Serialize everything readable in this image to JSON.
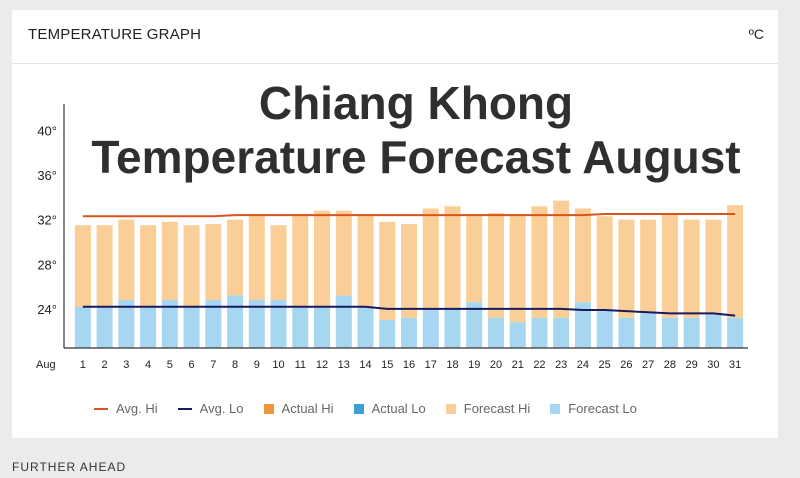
{
  "header": {
    "title": "TEMPERATURE GRAPH",
    "unit": "ºC"
  },
  "overlay": {
    "line1": "Chiang Khong",
    "line2": "Temperature Forecast August"
  },
  "footer": {
    "section": "FURTHER AHEAD"
  },
  "colors": {
    "avg_hi": "#d9531e",
    "avg_lo": "#1a1a5e",
    "actual_hi": "#f0943a",
    "actual_lo": "#3aa0d6",
    "forecast_hi": "#f9cf97",
    "forecast_lo": "#a6d6f0"
  },
  "legend": [
    {
      "label": "Avg. Hi",
      "kind": "line",
      "color": "#d9531e"
    },
    {
      "label": "Avg. Lo",
      "kind": "line",
      "color": "#1a1a5e"
    },
    {
      "label": "Actual Hi",
      "kind": "box",
      "color": "#f0943a"
    },
    {
      "label": "Actual Lo",
      "kind": "box",
      "color": "#3aa0d6"
    },
    {
      "label": "Forecast Hi",
      "kind": "box",
      "color": "#f9cf97"
    },
    {
      "label": "Forecast Lo",
      "kind": "box",
      "color": "#a6d6f0"
    }
  ],
  "chart_data": {
    "type": "bar",
    "x_prefix": "Aug",
    "categories": [
      "1",
      "2",
      "3",
      "4",
      "5",
      "6",
      "7",
      "8",
      "9",
      "10",
      "11",
      "12",
      "13",
      "14",
      "15",
      "16",
      "17",
      "18",
      "19",
      "20",
      "21",
      "22",
      "23",
      "24",
      "25",
      "26",
      "27",
      "28",
      "29",
      "30",
      "31"
    ],
    "yticks": [
      "40°",
      "36°",
      "32°",
      "28°",
      "24°"
    ],
    "ytick_values": [
      40,
      36,
      32,
      28,
      24
    ],
    "ylim": [
      20.5,
      42
    ],
    "grid": false,
    "legend_position": "bottom",
    "series": [
      {
        "name": "Forecast Hi",
        "values": [
          31.5,
          31.5,
          32,
          31.5,
          31.8,
          31.5,
          31.6,
          32,
          32.5,
          31.5,
          32.5,
          32.8,
          32.8,
          32.5,
          31.8,
          31.6,
          33,
          33.2,
          32.5,
          32.6,
          32.5,
          33.2,
          33.7,
          33,
          32.3,
          32,
          32,
          32.5,
          32,
          32,
          33.3
        ]
      },
      {
        "name": "Forecast Lo",
        "values": [
          24.2,
          24.2,
          24.8,
          24.2,
          24.8,
          24.2,
          24.8,
          25.2,
          24.8,
          24.8,
          24.2,
          24.2,
          25.2,
          24.2,
          23,
          23.2,
          24,
          24,
          24.6,
          23.2,
          22.8,
          23.2,
          23.2,
          24.6,
          23.8,
          23.2,
          23.6,
          23.2,
          23.2,
          23.6,
          23.2
        ]
      },
      {
        "name": "Avg. Hi",
        "values": [
          32.3,
          32.3,
          32.3,
          32.3,
          32.3,
          32.3,
          32.3,
          32.4,
          32.4,
          32.4,
          32.4,
          32.4,
          32.4,
          32.4,
          32.4,
          32.4,
          32.4,
          32.4,
          32.4,
          32.4,
          32.4,
          32.4,
          32.4,
          32.4,
          32.5,
          32.5,
          32.5,
          32.5,
          32.5,
          32.5,
          32.5
        ]
      },
      {
        "name": "Avg. Lo",
        "values": [
          24.2,
          24.2,
          24.2,
          24.2,
          24.2,
          24.2,
          24.2,
          24.2,
          24.2,
          24.2,
          24.2,
          24.2,
          24.2,
          24.2,
          24,
          24,
          24,
          24,
          24,
          24,
          24,
          24,
          24,
          23.9,
          23.9,
          23.8,
          23.7,
          23.6,
          23.6,
          23.6,
          23.4
        ]
      }
    ]
  }
}
